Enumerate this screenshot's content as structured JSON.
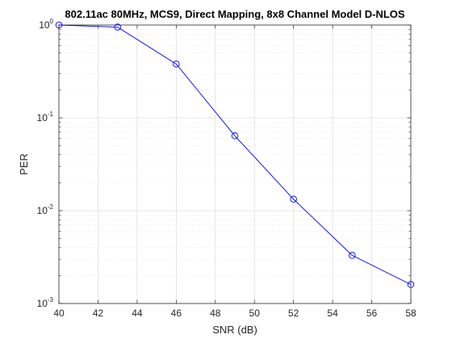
{
  "chart_data": {
    "type": "line",
    "title": "802.11ac 80MHz, MCS9, Direct Mapping, 8x8 Channel Model D-NLOS",
    "xlabel": "SNR (dB)",
    "ylabel": "PER",
    "xlim": [
      40,
      58
    ],
    "ylim": [
      0.001,
      1
    ],
    "yscale": "log",
    "grid": true,
    "xticks": [
      40,
      42,
      44,
      46,
      48,
      50,
      52,
      54,
      56,
      58
    ],
    "yticks": [
      {
        "value": 0.001,
        "base": "10",
        "exp": "-3"
      },
      {
        "value": 0.01,
        "base": "10",
        "exp": "-2"
      },
      {
        "value": 0.1,
        "base": "10",
        "exp": "-1"
      },
      {
        "value": 1,
        "base": "10",
        "exp": "0"
      }
    ],
    "series": [
      {
        "color": "#0000ff",
        "marker": "circle",
        "x": [
          40,
          43,
          46,
          49,
          52,
          55,
          58
        ],
        "y": [
          1.0,
          0.95,
          0.38,
          0.064,
          0.0133,
          0.0033,
          0.0016
        ]
      }
    ]
  }
}
